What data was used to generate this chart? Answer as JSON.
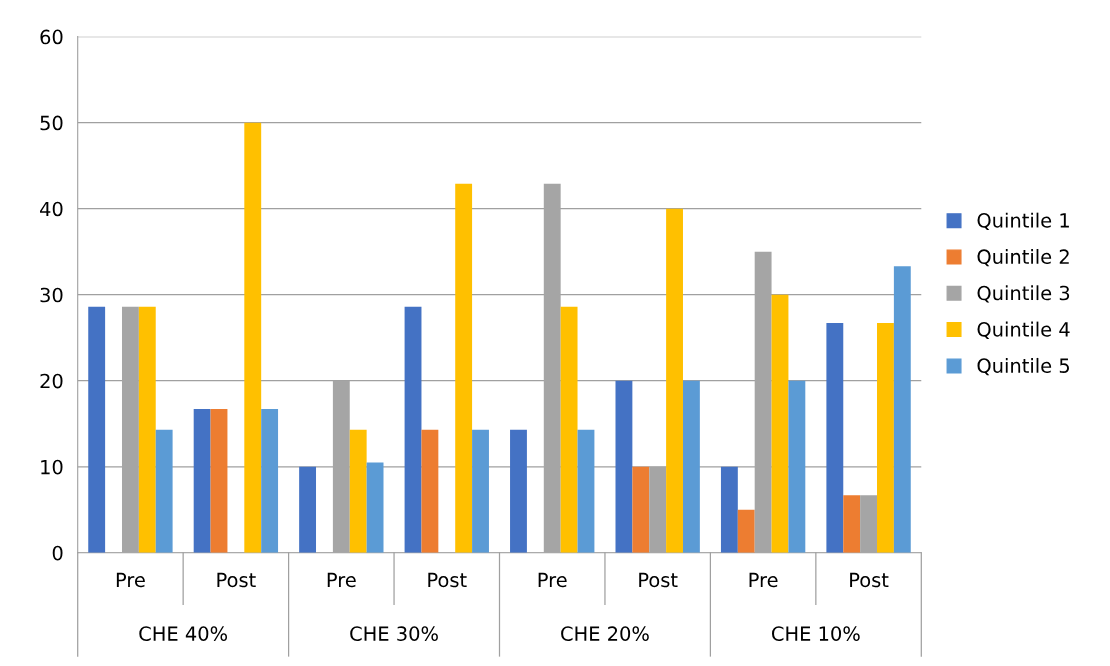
{
  "chart_data": {
    "type": "bar",
    "categories": [
      "Pre",
      "Post",
      "Pre",
      "Post",
      "Pre",
      "Post",
      "Pre",
      "Post"
    ],
    "series": [
      {
        "name": "Quintile 1",
        "color": "#4472c4",
        "values": [
          28.6,
          16.7,
          10,
          28.6,
          14.3,
          20,
          10,
          26.7
        ]
      },
      {
        "name": "Quintile 2",
        "color": "#ed7d31",
        "values": [
          0,
          16.7,
          0,
          14.3,
          0,
          10,
          5,
          6.7
        ]
      },
      {
        "name": "Quintile 3",
        "color": "#a5a5a5",
        "values": [
          28.6,
          0,
          20,
          0,
          42.9,
          10,
          35,
          6.7
        ]
      },
      {
        "name": "Quintile 4",
        "color": "#ffc000",
        "values": [
          28.6,
          50,
          14.3,
          42.9,
          28.6,
          40,
          30,
          26.7
        ]
      },
      {
        "name": "Quintile 5",
        "color": "#5b9bd5",
        "values": [
          14.3,
          16.7,
          10.5,
          14.3,
          14.3,
          20,
          20,
          33.3
        ]
      }
    ],
    "annotations": [
      "CHE 40%",
      "CHE 30%",
      "CHE 20%",
      "CHE 10%"
    ],
    "ylim": [
      0,
      60
    ],
    "yticks": [
      0,
      10,
      20,
      30,
      40,
      50,
      60
    ],
    "grid": "y",
    "legend": "right"
  }
}
